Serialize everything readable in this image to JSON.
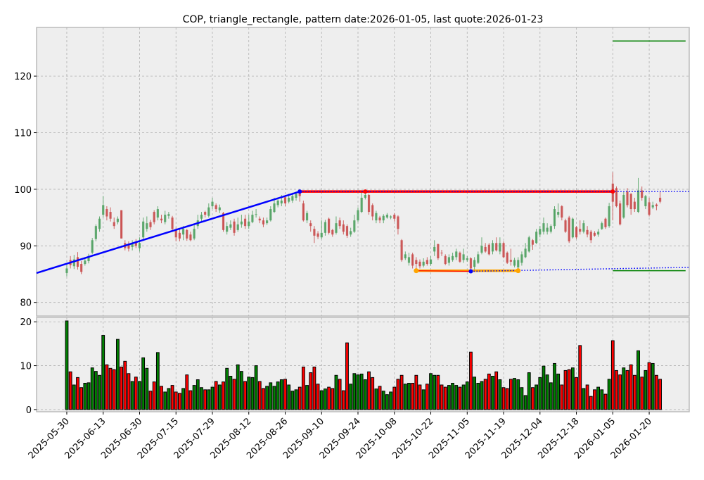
{
  "chart_data": {
    "type": "candlestick",
    "title": "COP, triangle_rectangle, pattern date:2026-01-05, last quote:2026-01-23",
    "price_axis": {
      "ylim": [
        77.6,
        128.6
      ],
      "ticks": [
        80,
        90,
        100,
        110,
        120
      ],
      "grid": true
    },
    "volume_axis": {
      "ylim": [
        -0.5,
        21
      ],
      "ticks": [
        0,
        10,
        20
      ],
      "grid": true
    },
    "x_axis": {
      "index_range": [
        -8.3,
        171
      ],
      "ticks": [
        {
          "index": 0,
          "label": "2025-05-30"
        },
        {
          "index": 10,
          "label": "2025-06-13"
        },
        {
          "index": 20,
          "label": "2025-06-30"
        },
        {
          "index": 30,
          "label": "2025-07-15"
        },
        {
          "index": 40,
          "label": "2025-07-29"
        },
        {
          "index": 50,
          "label": "2025-08-12"
        },
        {
          "index": 60,
          "label": "2025-08-26"
        },
        {
          "index": 70,
          "label": "2025-09-10"
        },
        {
          "index": 80,
          "label": "2025-09-24"
        },
        {
          "index": 90,
          "label": "2025-10-08"
        },
        {
          "index": 100,
          "label": "2025-10-22"
        },
        {
          "index": 110,
          "label": "2025-11-05"
        },
        {
          "index": 120,
          "label": "2025-11-19"
        },
        {
          "index": 130,
          "label": "2025-12-04"
        },
        {
          "index": 140,
          "label": "2025-12-18"
        },
        {
          "index": 150,
          "label": "2026-01-05"
        },
        {
          "index": 160,
          "label": "2026-01-20"
        }
      ]
    },
    "colors": {
      "up": "#4ea05f",
      "down": "#c84a4a",
      "vol_up": "#008000",
      "vol_down": "#ff0000",
      "panel": "#eeeeee"
    },
    "ohlc": [
      [
        85.2,
        86.6,
        84.6,
        86.0
      ],
      [
        87.5,
        88.2,
        86.0,
        86.6
      ],
      [
        86.4,
        88.4,
        85.9,
        87.6
      ],
      [
        88.0,
        88.9,
        85.8,
        86.3
      ],
      [
        86.8,
        87.3,
        85.0,
        85.4
      ],
      [
        86.8,
        88.0,
        86.5,
        87.4
      ],
      [
        87.3,
        88.6,
        86.9,
        88.2
      ],
      [
        88.8,
        91.4,
        88.5,
        91.0
      ],
      [
        91.2,
        93.8,
        90.8,
        93.5
      ],
      [
        93.0,
        95.2,
        92.5,
        94.8
      ],
      [
        95.5,
        98.8,
        95.0,
        97.2
      ],
      [
        96.5,
        97.0,
        94.5,
        95.2
      ],
      [
        96.0,
        96.8,
        94.3,
        94.8
      ],
      [
        94.2,
        95.0,
        93.0,
        93.5
      ],
      [
        94.2,
        95.2,
        93.8,
        94.8
      ],
      [
        96.3,
        96.3,
        91.3,
        91.3
      ],
      [
        90.5,
        91.0,
        89.2,
        89.6
      ],
      [
        90.2,
        90.8,
        89.0,
        89.5
      ],
      [
        89.8,
        91.0,
        89.2,
        90.5
      ],
      [
        90.7,
        91.2,
        89.6,
        90.0
      ],
      [
        89.6,
        91.5,
        89.0,
        90.5
      ],
      [
        91.5,
        95.0,
        91.0,
        94.3
      ],
      [
        93.0,
        95.2,
        92.5,
        94.0
      ],
      [
        94.2,
        94.6,
        92.8,
        93.3
      ],
      [
        96.0,
        96.3,
        93.8,
        94.2
      ],
      [
        95.0,
        97.0,
        94.5,
        96.5
      ],
      [
        94.8,
        95.5,
        94.0,
        94.5
      ],
      [
        94.2,
        96.2,
        93.8,
        95.5
      ],
      [
        95.3,
        96.0,
        94.8,
        95.6
      ],
      [
        95.0,
        95.3,
        92.5,
        93.0
      ],
      [
        92.8,
        93.2,
        90.8,
        91.5
      ],
      [
        92.3,
        93.0,
        90.8,
        91.3
      ],
      [
        92.0,
        93.5,
        91.0,
        93.0
      ],
      [
        92.8,
        93.0,
        90.9,
        91.3
      ],
      [
        92.0,
        92.5,
        90.8,
        91.0
      ],
      [
        91.3,
        93.8,
        91.0,
        93.0
      ],
      [
        93.5,
        95.5,
        93.0,
        94.5
      ],
      [
        94.8,
        96.0,
        94.3,
        95.5
      ],
      [
        96.0,
        96.2,
        95.0,
        95.5
      ],
      [
        95.3,
        97.5,
        95.0,
        96.8
      ],
      [
        97.0,
        98.5,
        96.5,
        97.8
      ],
      [
        97.2,
        97.5,
        96.0,
        96.5
      ],
      [
        96.3,
        97.3,
        95.8,
        96.8
      ],
      [
        95.8,
        96.0,
        92.5,
        92.8
      ],
      [
        92.5,
        94.2,
        92.0,
        93.5
      ],
      [
        93.2,
        94.5,
        92.8,
        93.8
      ],
      [
        94.3,
        94.8,
        91.8,
        92.3
      ],
      [
        92.8,
        95.0,
        92.5,
        93.8
      ],
      [
        93.8,
        95.5,
        93.2,
        94.3
      ],
      [
        94.8,
        95.5,
        93.0,
        93.5
      ],
      [
        93.5,
        95.5,
        93.0,
        94.3
      ],
      [
        94.2,
        96.2,
        94.0,
        95.5
      ],
      [
        95.5,
        96.5,
        95.0,
        95.6
      ],
      [
        94.8,
        95.2,
        94.0,
        94.5
      ],
      [
        94.5,
        95.0,
        93.3,
        93.8
      ],
      [
        94.0,
        95.0,
        93.7,
        94.5
      ],
      [
        94.5,
        97.0,
        94.3,
        96.5
      ],
      [
        96.0,
        98.5,
        95.8,
        97.5
      ],
      [
        97.2,
        98.5,
        96.8,
        98.0
      ],
      [
        97.5,
        99.0,
        97.0,
        98.0
      ],
      [
        98.6,
        99.0,
        97.0,
        97.5
      ],
      [
        97.8,
        99.2,
        97.5,
        98.5
      ],
      [
        98.0,
        99.4,
        97.6,
        98.8
      ],
      [
        98.5,
        99.6,
        98.0,
        99.2
      ],
      [
        99.3,
        99.6,
        97.8,
        98.8
      ],
      [
        97.5,
        98.0,
        94.3,
        94.5
      ],
      [
        94.5,
        96.2,
        94.0,
        95.8
      ],
      [
        94.0,
        94.5,
        92.5,
        93.5
      ],
      [
        93.0,
        93.5,
        90.5,
        91.8
      ],
      [
        92.2,
        92.6,
        91.2,
        91.6
      ],
      [
        91.5,
        94.5,
        91.2,
        92.3
      ],
      [
        92.3,
        94.6,
        91.8,
        94.2
      ],
      [
        94.8,
        95.0,
        92.0,
        92.3
      ],
      [
        92.8,
        93.0,
        91.6,
        92.0
      ],
      [
        92.3,
        95.2,
        92.0,
        94.0
      ],
      [
        94.5,
        95.0,
        93.0,
        93.5
      ],
      [
        93.8,
        94.5,
        92.0,
        92.5
      ],
      [
        93.5,
        93.8,
        91.4,
        91.8
      ],
      [
        92.0,
        93.2,
        91.6,
        92.6
      ],
      [
        92.5,
        95.5,
        92.3,
        94.5
      ],
      [
        94.5,
        96.8,
        94.2,
        96.3
      ],
      [
        96.0,
        99.6,
        95.8,
        98.5
      ],
      [
        98.5,
        99.6,
        98.2,
        99.0
      ],
      [
        99.0,
        99.2,
        95.5,
        96.0
      ],
      [
        97.2,
        97.5,
        94.5,
        95.2
      ],
      [
        94.5,
        96.2,
        94.0,
        95.8
      ],
      [
        95.0,
        95.3,
        94.0,
        94.5
      ],
      [
        94.5,
        95.6,
        94.0,
        95.3
      ],
      [
        95.0,
        95.8,
        94.8,
        95.5
      ],
      [
        95.0,
        95.4,
        94.7,
        95.2
      ],
      [
        95.5,
        95.8,
        94.3,
        94.8
      ],
      [
        95.2,
        95.4,
        92.0,
        93.0
      ],
      [
        91.0,
        91.2,
        87.2,
        87.5
      ],
      [
        87.8,
        89.0,
        87.5,
        88.5
      ],
      [
        87.0,
        88.8,
        86.5,
        88.0
      ],
      [
        88.5,
        88.8,
        86.0,
        86.5
      ],
      [
        87.5,
        88.0,
        85.6,
        86.8
      ],
      [
        87.2,
        87.6,
        86.0,
        86.4
      ],
      [
        86.5,
        87.8,
        86.2,
        87.2
      ],
      [
        87.5,
        88.0,
        86.5,
        86.8
      ],
      [
        86.8,
        88.2,
        86.5,
        87.6
      ],
      [
        89.0,
        91.0,
        88.2,
        89.8
      ],
      [
        90.3,
        90.4,
        87.5,
        87.8
      ],
      [
        88.8,
        89.3,
        88.2,
        88.7
      ],
      [
        88.2,
        88.5,
        86.6,
        86.8
      ],
      [
        87.0,
        88.5,
        86.5,
        88.0
      ],
      [
        87.5,
        88.8,
        87.2,
        88.2
      ],
      [
        88.0,
        89.5,
        87.5,
        89.0
      ],
      [
        88.8,
        89.0,
        87.0,
        87.2
      ],
      [
        87.5,
        89.5,
        87.0,
        88.5
      ],
      [
        87.5,
        88.2,
        87.2,
        87.8
      ],
      [
        87.8,
        88.0,
        85.5,
        86.0
      ],
      [
        86.3,
        88.0,
        85.8,
        87.5
      ],
      [
        87.0,
        89.0,
        86.8,
        88.5
      ],
      [
        88.8,
        91.5,
        88.5,
        90.0
      ],
      [
        89.8,
        90.5,
        88.8,
        89.0
      ],
      [
        90.2,
        90.5,
        88.3,
        88.5
      ],
      [
        89.0,
        91.0,
        88.5,
        90.5
      ],
      [
        90.5,
        91.5,
        89.0,
        89.2
      ],
      [
        89.0,
        91.5,
        88.5,
        90.5
      ],
      [
        90.5,
        90.8,
        87.8,
        88.0
      ],
      [
        88.8,
        89.0,
        86.8,
        87.0
      ],
      [
        87.5,
        89.5,
        86.5,
        87.2
      ],
      [
        86.5,
        87.9,
        86.2,
        87.5
      ],
      [
        86.2,
        88.0,
        85.9,
        87.5
      ],
      [
        87.0,
        89.0,
        86.5,
        88.5
      ],
      [
        88.0,
        90.5,
        87.8,
        89.5
      ],
      [
        89.0,
        91.8,
        88.8,
        91.5
      ],
      [
        91.0,
        91.2,
        89.3,
        90.2
      ],
      [
        90.5,
        93.0,
        90.3,
        92.5
      ],
      [
        92.0,
        93.5,
        91.5,
        93.0
      ],
      [
        92.5,
        95.0,
        92.0,
        94.0
      ],
      [
        92.5,
        94.0,
        92.0,
        93.2
      ],
      [
        92.5,
        93.8,
        92.2,
        93.5
      ],
      [
        93.5,
        97.0,
        93.0,
        96.5
      ],
      [
        95.5,
        97.5,
        95.0,
        96.0
      ],
      [
        97.0,
        97.2,
        94.5,
        95.0
      ],
      [
        94.5,
        94.8,
        92.3,
        92.5
      ],
      [
        95.0,
        95.3,
        90.5,
        90.8
      ],
      [
        91.5,
        95.0,
        91.3,
        94.8
      ],
      [
        93.3,
        93.5,
        91.2,
        91.5
      ],
      [
        93.0,
        94.5,
        92.0,
        92.5
      ],
      [
        92.5,
        94.5,
        92.2,
        94.0
      ],
      [
        92.8,
        93.5,
        91.5,
        92.0
      ],
      [
        92.5,
        92.8,
        90.5,
        91.0
      ],
      [
        92.3,
        92.6,
        91.6,
        91.8
      ],
      [
        92.0,
        93.0,
        91.6,
        92.5
      ],
      [
        93.0,
        94.3,
        92.8,
        94.0
      ],
      [
        94.8,
        95.0,
        93.0,
        93.3
      ],
      [
        93.5,
        97.6,
        93.2,
        97.0
      ],
      [
        101.0,
        103.0,
        94.5,
        97.8
      ],
      [
        100.2,
        100.5,
        96.8,
        97.0
      ],
      [
        97.5,
        98.0,
        93.6,
        93.8
      ],
      [
        95.0,
        99.5,
        94.8,
        99.0
      ],
      [
        99.6,
        100.2,
        96.8,
        97.2
      ],
      [
        99.2,
        99.3,
        95.5,
        96.5
      ],
      [
        97.8,
        98.5,
        96.0,
        96.5
      ],
      [
        96.0,
        102.0,
        95.8,
        99.8
      ],
      [
        99.8,
        100.5,
        98.0,
        98.5
      ],
      [
        97.0,
        99.0,
        96.5,
        98.8
      ],
      [
        97.7,
        98.5,
        95.2,
        95.5
      ],
      [
        96.8,
        97.8,
        96.5,
        97.2
      ],
      [
        97.3,
        97.5,
        96.3,
        97.0
      ],
      [
        98.5,
        99.5,
        97.5,
        97.8
      ]
    ],
    "volume": [
      20.2,
      8.6,
      5.6,
      7.3,
      5.0,
      6.0,
      6.1,
      9.5,
      8.7,
      7.8,
      16.9,
      10.2,
      9.4,
      9.1,
      16.0,
      9.7,
      11.0,
      8.2,
      6.4,
      7.4,
      6.4,
      11.8,
      9.4,
      4.2,
      6.3,
      13.0,
      5.3,
      4.0,
      4.8,
      5.5,
      4.0,
      3.7,
      4.8,
      7.9,
      4.3,
      5.5,
      6.8,
      5.0,
      4.5,
      4.5,
      5.1,
      6.4,
      5.6,
      6.3,
      9.4,
      7.6,
      6.9,
      10.2,
      8.7,
      6.4,
      7.4,
      7.3,
      10.0,
      6.4,
      4.8,
      5.3,
      6.1,
      5.3,
      6.3,
      6.8,
      6.9,
      5.6,
      4.2,
      4.5,
      5.1,
      9.7,
      5.5,
      8.4,
      9.7,
      5.8,
      4.3,
      4.7,
      5.1,
      4.8,
      7.8,
      6.9,
      4.3,
      15.2,
      5.8,
      8.2,
      7.9,
      8.1,
      6.8,
      8.6,
      7.3,
      4.7,
      5.3,
      4.2,
      3.4,
      4.0,
      5.1,
      6.9,
      7.8,
      5.8,
      6.0,
      6.0,
      7.8,
      5.6,
      4.5,
      5.8,
      8.2,
      7.8,
      7.8,
      5.6,
      5.1,
      5.5,
      6.0,
      5.5,
      5.1,
      5.6,
      6.3,
      13.1,
      7.4,
      6.0,
      6.4,
      6.9,
      8.1,
      7.6,
      8.6,
      6.8,
      5.0,
      4.8,
      6.9,
      7.1,
      6.8,
      5.0,
      3.2,
      8.4,
      5.0,
      5.6,
      7.3,
      9.9,
      7.9,
      6.1,
      10.5,
      8.1,
      5.6,
      8.9,
      9.1,
      9.5,
      7.3,
      14.6,
      4.8,
      5.6,
      3.0,
      4.5,
      5.1,
      4.5,
      3.5,
      6.9,
      15.7,
      8.9,
      7.9,
      9.5,
      8.9,
      10.2,
      7.8,
      13.4,
      7.4,
      8.9,
      10.7,
      10.5,
      7.8,
      6.9
    ],
    "annotations": {
      "trend_line": {
        "color": "#0000ff",
        "from": [
          -8.3,
          85.2
        ],
        "to": [
          64,
          99.6
        ]
      },
      "resistance_line": {
        "color": "#ff0000",
        "from": 64,
        "to": 150,
        "price": 99.6,
        "markers": [
          {
            "index": 64,
            "color": "#0000ff"
          },
          {
            "index": 82,
            "color": "#ff0000"
          },
          {
            "index": 150,
            "color": "#ff0000"
          }
        ]
      },
      "resistance_projection": {
        "color": "#0000ff",
        "from": [
          64,
          99.6
        ],
        "to": [
          171,
          99.6
        ]
      },
      "support_line": {
        "color": "#ffa500",
        "inner_color": "#ff0000",
        "from": 96,
        "to": 124,
        "price": 85.6,
        "markers": [
          {
            "index": 96,
            "color": "#ffa500"
          },
          {
            "index": 124,
            "color": "#ffa500"
          }
        ]
      },
      "support_projection": {
        "color": "#0000ff",
        "from": [
          111,
          85.5
        ],
        "to": [
          171,
          86.2
        ],
        "marker_index": 111
      },
      "target_lines": {
        "color": "#008000",
        "from": 150,
        "to": 170,
        "prices": [
          126.2,
          85.6
        ]
      }
    }
  }
}
